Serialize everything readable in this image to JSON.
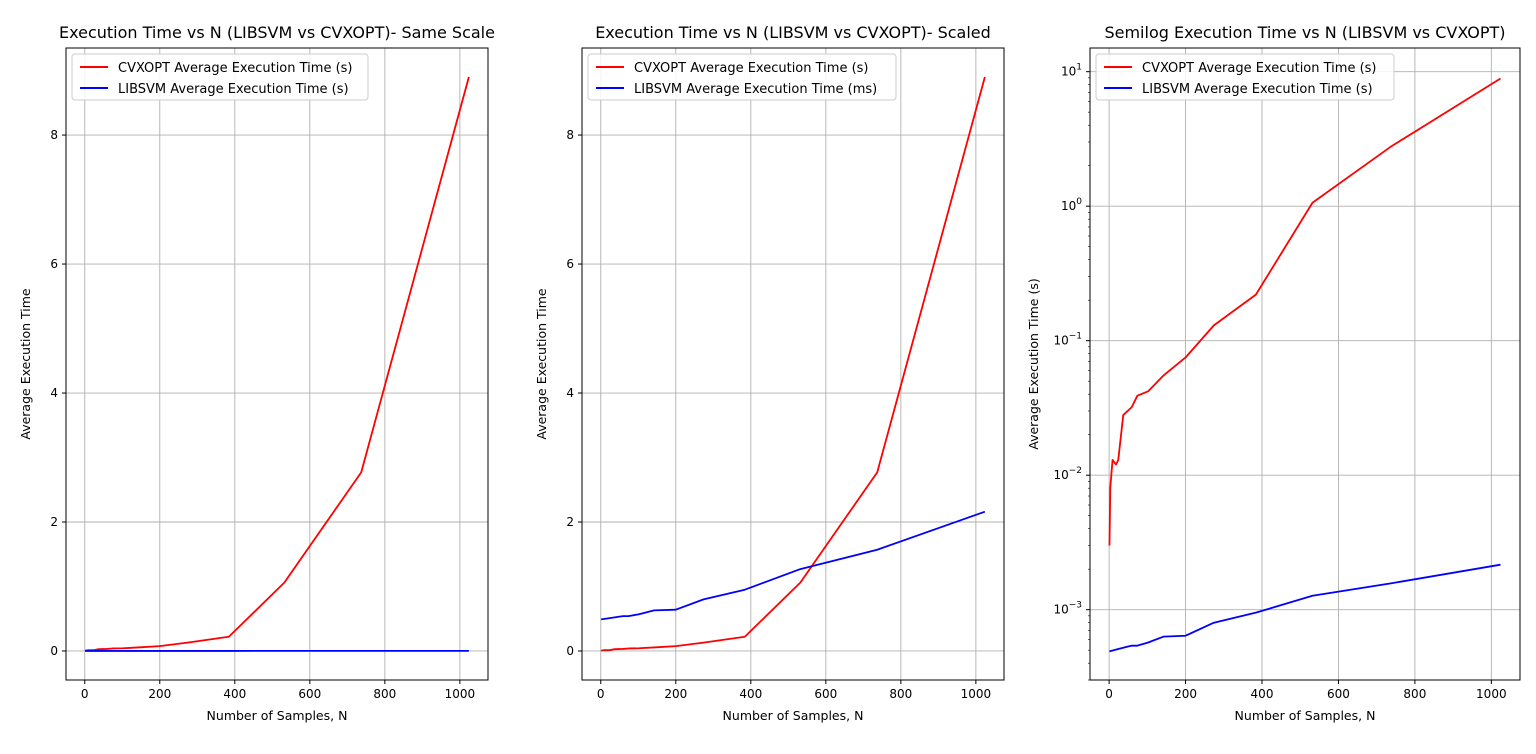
{
  "colors": {
    "cvxopt": "#ff0000",
    "libsvm": "#0000ff",
    "grid": "#b0b0b0",
    "axes": "#000000",
    "legend_border": "#cccccc"
  },
  "chart_data": [
    {
      "type": "line",
      "title": "Execution Time vs N (LIBSVM vs CVXOPT)- Same Scale",
      "xlabel": "Number of Samples, N",
      "ylabel": "Average Execution Time",
      "xscale": "linear",
      "yscale": "linear",
      "xlim": [
        -50,
        1075
      ],
      "ylim": [
        -0.45,
        9.35
      ],
      "xticks": [
        0,
        200,
        400,
        600,
        800,
        1000
      ],
      "xtick_labels": [
        "0",
        "200",
        "400",
        "600",
        "800",
        "1000"
      ],
      "yticks": [
        0,
        2,
        4,
        6,
        8
      ],
      "ytick_labels": [
        "0",
        "2",
        "4",
        "6",
        "8"
      ],
      "grid": true,
      "legend_position": "upper-left",
      "series": [
        {
          "name": "CVXOPT Average Execution Time (s)",
          "color_key": "cvxopt",
          "x": [
            1,
            3,
            9,
            18,
            24,
            37,
            59,
            74,
            102,
            142,
            200,
            274,
            384,
            532,
            737,
            1024
          ],
          "y": [
            0.003,
            0.008,
            0.013,
            0.012,
            0.013,
            0.028,
            0.032,
            0.039,
            0.042,
            0.055,
            0.075,
            0.13,
            0.22,
            1.06,
            2.77,
            8.9
          ]
        },
        {
          "name": "LIBSVM Average Execution Time (s)",
          "color_key": "libsvm",
          "x": [
            1,
            24,
            59,
            74,
            102,
            142,
            200,
            274,
            384,
            532,
            737,
            1024
          ],
          "y": [
            0.00049,
            0.00051,
            0.00054,
            0.00054,
            0.00057,
            0.00063,
            0.00064,
            0.0008,
            0.00095,
            0.00127,
            0.00157,
            0.00216
          ]
        }
      ]
    },
    {
      "type": "line",
      "title": "Execution Time vs N (LIBSVM vs CVXOPT)- Scaled",
      "xlabel": "Number of Samples, N",
      "ylabel": "Average Execution Time",
      "xscale": "linear",
      "yscale": "linear",
      "xlim": [
        -50,
        1075
      ],
      "ylim": [
        -0.45,
        9.35
      ],
      "xticks": [
        0,
        200,
        400,
        600,
        800,
        1000
      ],
      "xtick_labels": [
        "0",
        "200",
        "400",
        "600",
        "800",
        "1000"
      ],
      "yticks": [
        0,
        2,
        4,
        6,
        8
      ],
      "ytick_labels": [
        "0",
        "2",
        "4",
        "6",
        "8"
      ],
      "grid": true,
      "legend_position": "upper-left",
      "series": [
        {
          "name": "CVXOPT Average Execution Time (s)",
          "color_key": "cvxopt",
          "x": [
            1,
            3,
            9,
            18,
            24,
            37,
            59,
            74,
            102,
            142,
            200,
            274,
            384,
            532,
            737,
            1024
          ],
          "y": [
            0.003,
            0.008,
            0.013,
            0.012,
            0.013,
            0.028,
            0.032,
            0.039,
            0.042,
            0.055,
            0.075,
            0.13,
            0.22,
            1.06,
            2.77,
            8.9
          ]
        },
        {
          "name": "LIBSVM Average Execution Time (ms)",
          "color_key": "libsvm",
          "x": [
            1,
            24,
            59,
            74,
            102,
            142,
            200,
            274,
            384,
            532,
            737,
            1024
          ],
          "y": [
            0.49,
            0.51,
            0.54,
            0.54,
            0.57,
            0.63,
            0.64,
            0.8,
            0.95,
            1.27,
            1.57,
            2.16
          ]
        }
      ]
    },
    {
      "type": "line",
      "title": "Semilog Execution Time vs N (LIBSVM vs CVXOPT)",
      "xlabel": "Number of Samples, N",
      "ylabel": "Average Execution Time (s)",
      "xscale": "linear",
      "yscale": "log",
      "xlim": [
        -50,
        1075
      ],
      "ylim": [
        0.0003,
        15
      ],
      "xticks": [
        0,
        200,
        400,
        600,
        800,
        1000
      ],
      "xtick_labels": [
        "0",
        "200",
        "400",
        "600",
        "800",
        "1000"
      ],
      "yticks": [
        0.001,
        0.01,
        0.1,
        1,
        10
      ],
      "ytick_labels": [
        {
          "base": "10",
          "exp": "−3"
        },
        {
          "base": "10",
          "exp": "−2"
        },
        {
          "base": "10",
          "exp": "−1"
        },
        {
          "base": "10",
          "exp": "0"
        },
        {
          "base": "10",
          "exp": "1"
        }
      ],
      "grid": true,
      "legend_position": "upper-left",
      "series": [
        {
          "name": "CVXOPT Average Execution Time (s)",
          "color_key": "cvxopt",
          "x": [
            1,
            3,
            9,
            18,
            24,
            37,
            59,
            74,
            102,
            142,
            200,
            274,
            384,
            532,
            737,
            1024
          ],
          "y": [
            0.003,
            0.008,
            0.013,
            0.012,
            0.013,
            0.028,
            0.032,
            0.039,
            0.042,
            0.055,
            0.075,
            0.13,
            0.22,
            1.06,
            2.77,
            8.9
          ]
        },
        {
          "name": "LIBSVM Average Execution Time (s)",
          "color_key": "libsvm",
          "x": [
            1,
            24,
            59,
            74,
            102,
            142,
            200,
            274,
            384,
            532,
            737,
            1024
          ],
          "y": [
            0.00049,
            0.00051,
            0.00054,
            0.00054,
            0.00057,
            0.00063,
            0.00064,
            0.0008,
            0.00095,
            0.00127,
            0.00157,
            0.00216
          ]
        }
      ]
    }
  ]
}
